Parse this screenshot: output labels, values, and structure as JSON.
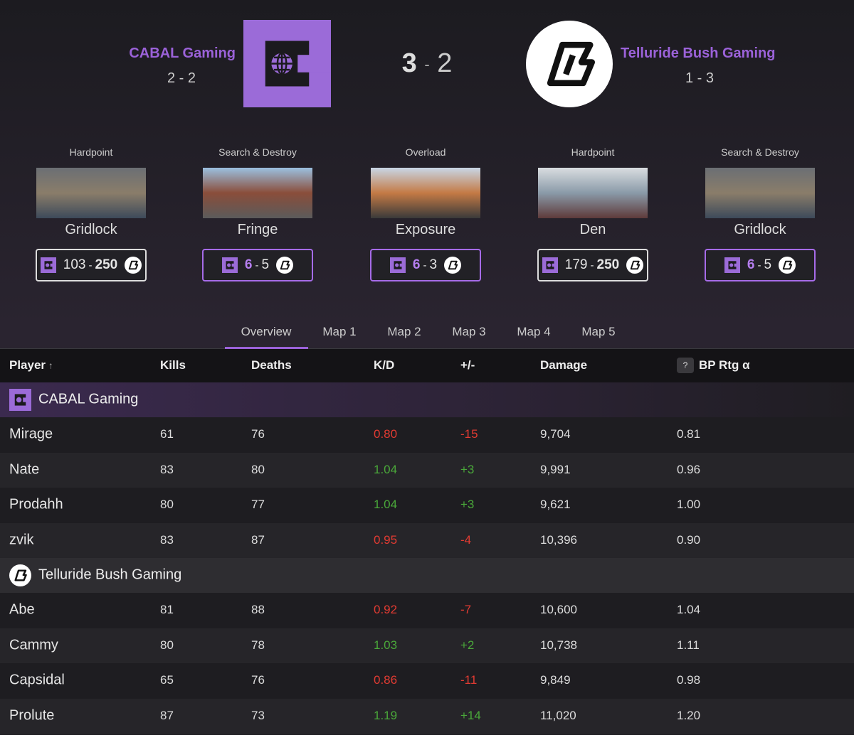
{
  "header": {
    "team1": {
      "name": "CABAL Gaming",
      "record": "2 - 2"
    },
    "score": {
      "team1": 3,
      "separator": "-",
      "team2": 2
    },
    "team2": {
      "name": "Telluride Bush Gaming",
      "record": "1 - 3"
    }
  },
  "maps": [
    {
      "mode": "Hardpoint",
      "name": "Gridlock",
      "team1": 103,
      "team2": 250
    },
    {
      "mode": "Search & Destroy",
      "name": "Fringe",
      "team1": 6,
      "team2": 5
    },
    {
      "mode": "Overload",
      "name": "Exposure",
      "team1": 6,
      "team2": 3
    },
    {
      "mode": "Hardpoint",
      "name": "Den",
      "team1": 179,
      "team2": 250
    },
    {
      "mode": "Search & Destroy",
      "name": "Gridlock",
      "team1": 6,
      "team2": 5
    }
  ],
  "tabs": [
    "Overview",
    "Map 1",
    "Map 2",
    "Map 3",
    "Map 4",
    "Map 5"
  ],
  "table": {
    "columns": [
      "Player",
      "Kills",
      "Deaths",
      "K/D",
      "+/-",
      "Damage",
      "BP Rtg α"
    ],
    "sort_indicator": "↑",
    "help": "?",
    "groups": [
      {
        "team": "CABAL Gaming",
        "rows": [
          [
            "Mirage",
            61,
            76,
            "0.80",
            "-15",
            "9,704",
            "0.81"
          ],
          [
            "Nate",
            83,
            80,
            "1.04",
            "+3",
            "9,991",
            "0.96"
          ],
          [
            "Prodahh",
            80,
            77,
            "1.04",
            "+3",
            "9,621",
            "1.00"
          ],
          [
            "zvik",
            83,
            87,
            "0.95",
            "-4",
            "10,396",
            "0.90"
          ]
        ]
      },
      {
        "team": "Telluride Bush Gaming",
        "rows": [
          [
            "Abe",
            81,
            88,
            "0.92",
            "-7",
            "10,600",
            "1.04"
          ],
          [
            "Cammy",
            80,
            78,
            "1.03",
            "+2",
            "10,738",
            "1.11"
          ],
          [
            "Capsidal",
            65,
            76,
            "0.86",
            "-11",
            "9,849",
            "0.98"
          ],
          [
            "Prolute",
            87,
            73,
            "1.19",
            "+14",
            "11,020",
            "1.20"
          ]
        ]
      }
    ]
  }
}
